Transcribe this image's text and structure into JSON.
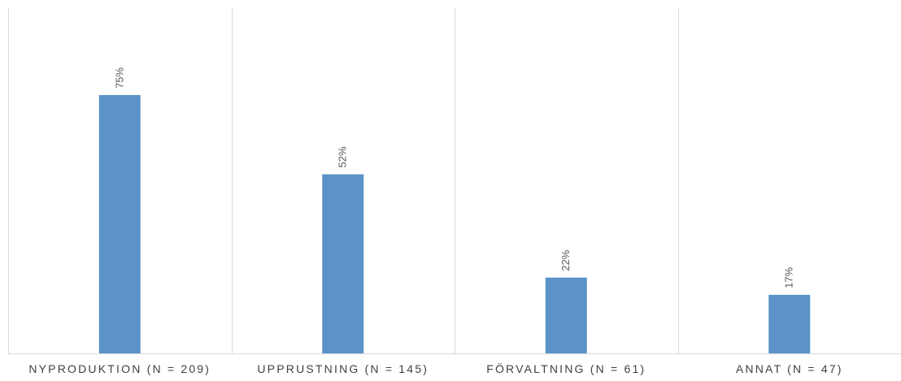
{
  "chart_data": {
    "type": "bar",
    "categories": [
      "NYPRODUKTION (N = 209)",
      "UPPRUSTNING (N = 145)",
      "FÖRVALTNING (N = 61)",
      "ANNAT (N = 47)"
    ],
    "series": [
      {
        "values": [
          75,
          52,
          22,
          17
        ]
      }
    ],
    "data_labels": [
      "75%",
      "52%",
      "22%",
      "17%"
    ],
    "value_unit": "%",
    "ylim": [
      0,
      100
    ],
    "title": "",
    "xlabel": "",
    "ylabel": "",
    "grid": "vertical separators between categories",
    "legend": "none",
    "colors": {
      "bar": "#5b93c8",
      "grid": "#d9d9d9",
      "label": "#595959",
      "tick": "#404040"
    }
  }
}
